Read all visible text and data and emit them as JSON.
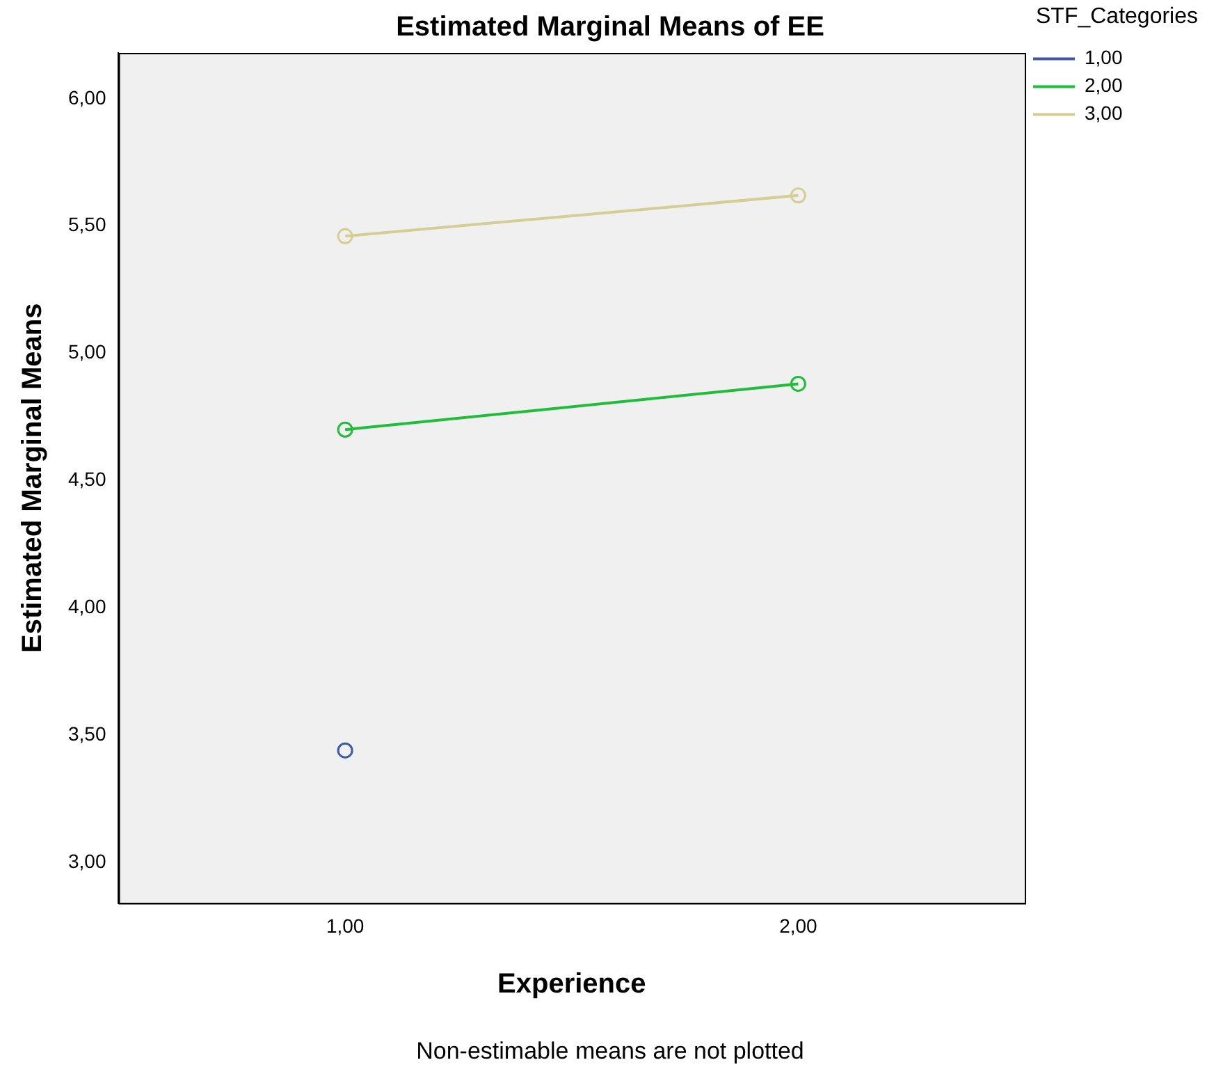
{
  "chart_data": {
    "type": "line",
    "title": "Estimated Marginal Means of EE",
    "xlabel": "Experience",
    "ylabel": "Estimated Marginal Means",
    "legend_title": "STF_Categories",
    "annotations": [
      "Non-estimable means are not plotted"
    ],
    "categories": [
      "1,00",
      "2,00"
    ],
    "series": [
      {
        "name": "1,00",
        "color": "#3e58ac",
        "values": [
          3.44,
          null
        ]
      },
      {
        "name": "2,00",
        "color": "#1fbd3a",
        "values": [
          4.7,
          4.88
        ]
      },
      {
        "name": "3,00",
        "color": "#d5cd94",
        "values": [
          5.46,
          5.62
        ]
      }
    ],
    "ylim": [
      2.84,
      6.18
    ],
    "yticks": [
      {
        "value": 3,
        "label": "3,00"
      },
      {
        "value": 3.5,
        "label": "3,50"
      },
      {
        "value": 4,
        "label": "4,00"
      },
      {
        "value": 4.5,
        "label": "4,50"
      },
      {
        "value": 5,
        "label": "5,00"
      },
      {
        "value": 5.5,
        "label": "5,50"
      },
      {
        "value": 6,
        "label": "6,00"
      }
    ],
    "grid": false,
    "legend": "top right",
    "marker": "circle",
    "line_style": "solid"
  }
}
